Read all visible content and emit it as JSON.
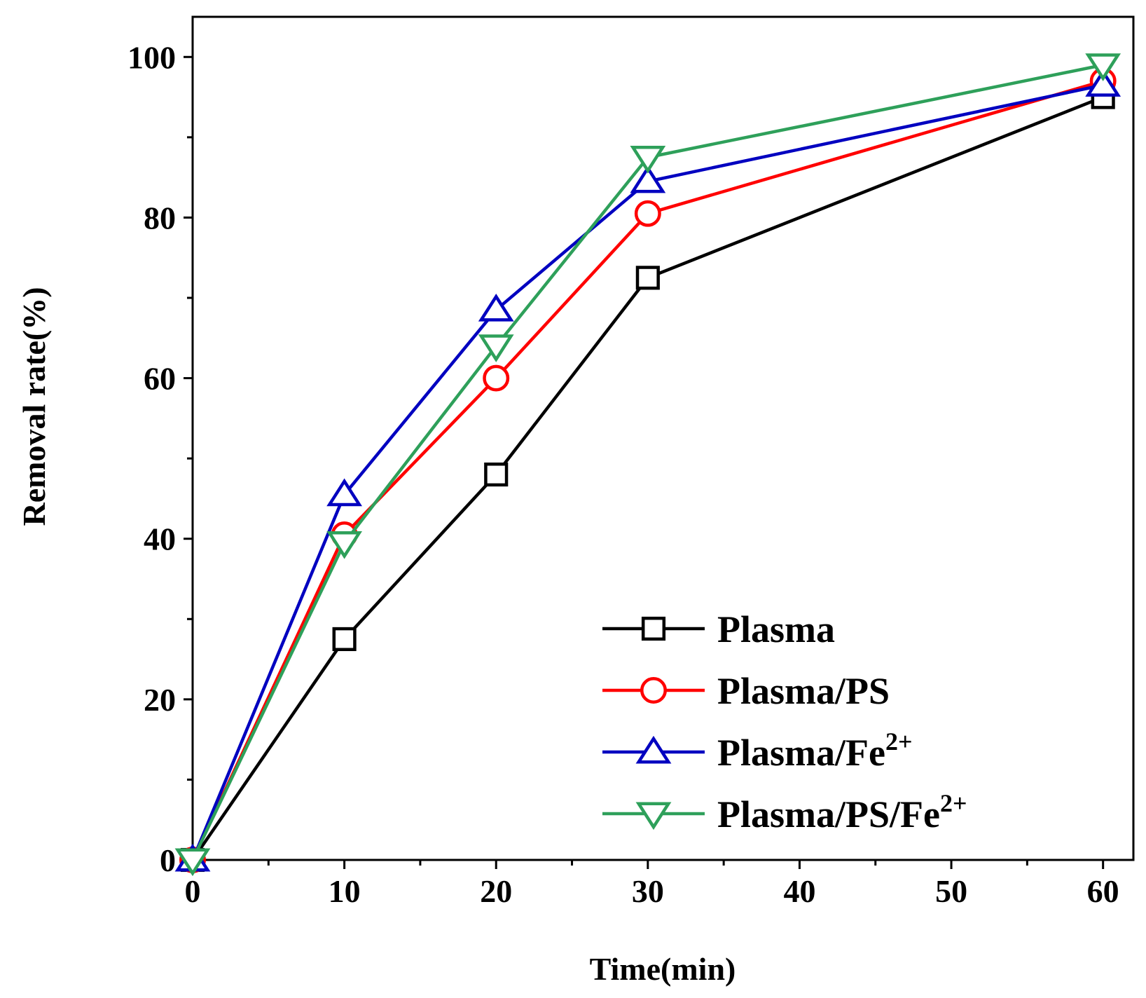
{
  "chart_data": {
    "type": "line",
    "title": "",
    "xlabel": "Time(min)",
    "ylabel": "Removal rate(%)",
    "xlim": [
      0,
      62
    ],
    "ylim": [
      0,
      105
    ],
    "xticks": [
      0,
      10,
      20,
      30,
      40,
      50,
      60
    ],
    "yticks": [
      0,
      20,
      40,
      60,
      80,
      100
    ],
    "x_minor_step": 5,
    "y_minor_step": 10,
    "legend_position": "bottom-right",
    "x": [
      0,
      10,
      20,
      30,
      60
    ],
    "series": [
      {
        "name": "Plasma",
        "name_base": "Plasma",
        "name_sup": "",
        "color": "#000000",
        "marker": "square",
        "values": [
          0,
          27.5,
          48,
          72.5,
          95
        ]
      },
      {
        "name": "Plasma/PS",
        "name_base": "Plasma/PS",
        "name_sup": "",
        "color": "#ff0000",
        "marker": "circle",
        "values": [
          0,
          40.5,
          60,
          80.5,
          97
        ]
      },
      {
        "name": "Plasma/Fe2+",
        "name_base": "Plasma/Fe",
        "name_sup": "2+",
        "color": "#0000c0",
        "marker": "triangle-up",
        "values": [
          0,
          45.5,
          68.5,
          84.5,
          96.5
        ]
      },
      {
        "name": "Plasma/PS/Fe2+",
        "name_base": "Plasma/PS/Fe",
        "name_sup": "2+",
        "color": "#2ea05a",
        "marker": "triangle-down",
        "values": [
          0,
          39.5,
          64,
          87.5,
          99
        ]
      }
    ]
  }
}
